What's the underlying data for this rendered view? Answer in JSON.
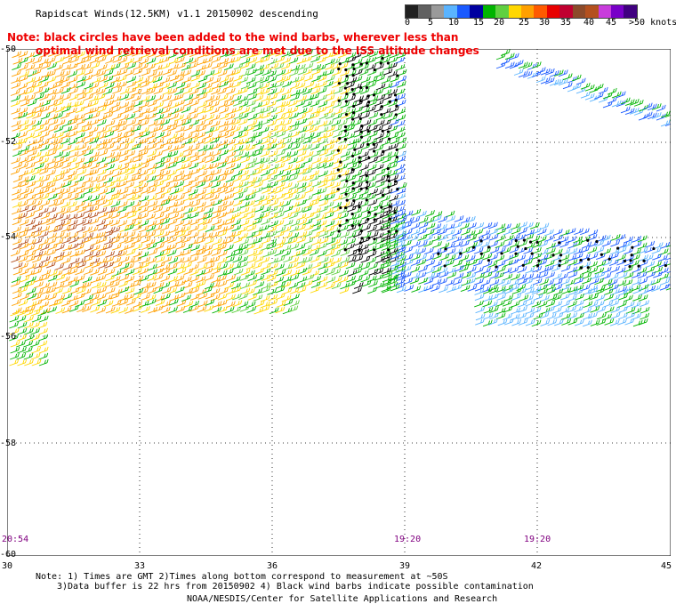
{
  "header": {
    "title": "Rapidscat Winds(12.5KM) v1.1 20150902 descending",
    "note_line1": "Note: black circles have been added to the wind barbs, wherever less than",
    "note_line2": "optimal wind retrieval conditions are met due to the ISS altitude changes"
  },
  "legend": {
    "labels": [
      "0",
      "5",
      "10",
      "15",
      "20",
      "25",
      "30",
      "35",
      "40",
      "45",
      ">50 knots"
    ],
    "colors": [
      "#202020",
      "#606060",
      "#9a9a9a",
      "#5ab4ff",
      "#1a5aff",
      "#0000a0",
      "#00b400",
      "#60d040",
      "#ffd700",
      "#ffa000",
      "#ff5a00",
      "#e80000",
      "#c00030",
      "#8c4a2a",
      "#b4501e",
      "#c83cdc",
      "#7800c8",
      "#400080"
    ]
  },
  "axes": {
    "y_labels": [
      "-50",
      "-52",
      "-54",
      "-56",
      "-58",
      "-60"
    ],
    "x_labels": [
      "30",
      "33",
      "36",
      "39",
      "42",
      "45"
    ]
  },
  "time_labels": [
    "20:54",
    "19:20",
    "19:20"
  ],
  "footer": {
    "line1": "Note: 1) Times are GMT 2)Times along bottom correspond to measurement at ~50S",
    "line2": "3)Data buffer is 22 hrs from 20150902 4) Black wind barbs indicate possible contamination",
    "line3": "NOAA/NESDIS/Center for Satellite Applications and Research"
  }
}
